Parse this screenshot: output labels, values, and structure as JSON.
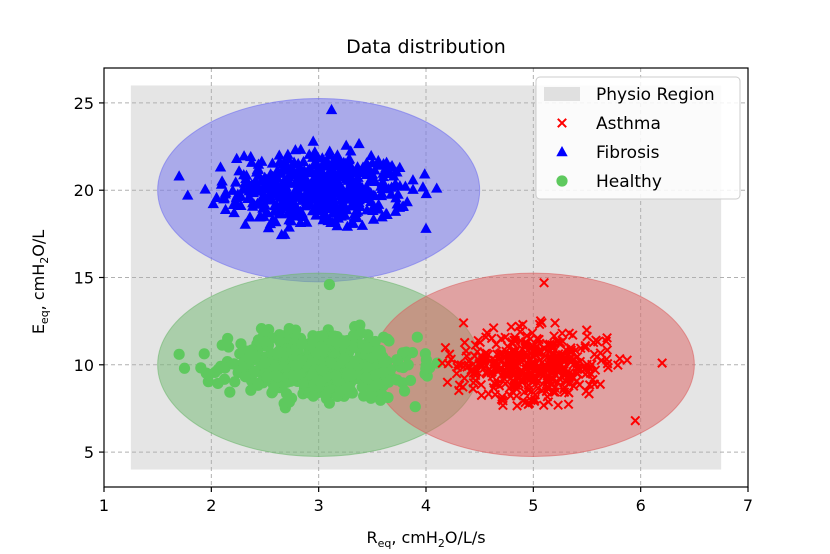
{
  "chart_data": {
    "type": "scatter",
    "title": "Data distribution",
    "xlabel": {
      "main": "R",
      "sub": "eq",
      "rest_before_sub": ", cmH",
      "sub2": "2",
      "rest_after": "O/L/s"
    },
    "ylabel": {
      "main": "E",
      "sub": "eq",
      "rest_before_sub": ", cmH",
      "sub2": "2",
      "rest_after": "O/L"
    },
    "xlim": [
      1,
      7
    ],
    "ylim": [
      3,
      27
    ],
    "xticks": [
      1,
      2,
      3,
      4,
      5,
      6,
      7
    ],
    "yticks": [
      5,
      10,
      15,
      20,
      25
    ],
    "grid": true,
    "grid_style": "dashed",
    "legend_position": "top-right",
    "physio_region": {
      "name": "Physio Region",
      "x_range": [
        1.25,
        6.75
      ],
      "y_range": [
        4,
        26
      ],
      "color": "#e0e0e0"
    },
    "series": [
      {
        "name": "Asthma",
        "marker": "x",
        "color": "#ff0000",
        "ellipse": {
          "center": [
            5.0,
            10.0
          ],
          "width": 3.0,
          "height": 10.5,
          "fill": "#dc6060"
        },
        "cloud": {
          "center": [
            5.0,
            10.0
          ],
          "sd": [
            0.35,
            1.0
          ],
          "count": 450,
          "outliers": [
            [
              5.1,
              14.7
            ],
            [
              6.2,
              10.1
            ],
            [
              4.35,
              12.4
            ],
            [
              4.2,
              9.0
            ],
            [
              5.95,
              6.8
            ]
          ]
        }
      },
      {
        "name": "Fibrosis",
        "marker": "^",
        "color": "#0000ff",
        "ellipse": {
          "center": [
            3.0,
            20.0
          ],
          "width": 3.0,
          "height": 10.5,
          "fill": "#6f6ff0"
        },
        "cloud": {
          "center": [
            3.0,
            20.0
          ],
          "sd": [
            0.42,
            1.1
          ],
          "count": 550,
          "outliers": [
            [
              3.12,
              24.6
            ],
            [
              1.7,
              20.8
            ],
            [
              1.78,
              19.7
            ],
            [
              4.1,
              20.1
            ],
            [
              4.0,
              17.8
            ]
          ]
        }
      },
      {
        "name": "Healthy",
        "marker": "o",
        "color": "#5ec95e",
        "ellipse": {
          "center": [
            3.0,
            10.0
          ],
          "width": 3.0,
          "height": 10.5,
          "fill": "#70b870"
        },
        "cloud": {
          "center": [
            3.0,
            10.0
          ],
          "sd": [
            0.45,
            1.0
          ],
          "count": 550,
          "outliers": [
            [
              3.1,
              14.6
            ],
            [
              1.7,
              10.6
            ],
            [
              1.75,
              9.8
            ],
            [
              3.8,
              8.5
            ],
            [
              3.9,
              7.6
            ]
          ]
        }
      }
    ]
  }
}
